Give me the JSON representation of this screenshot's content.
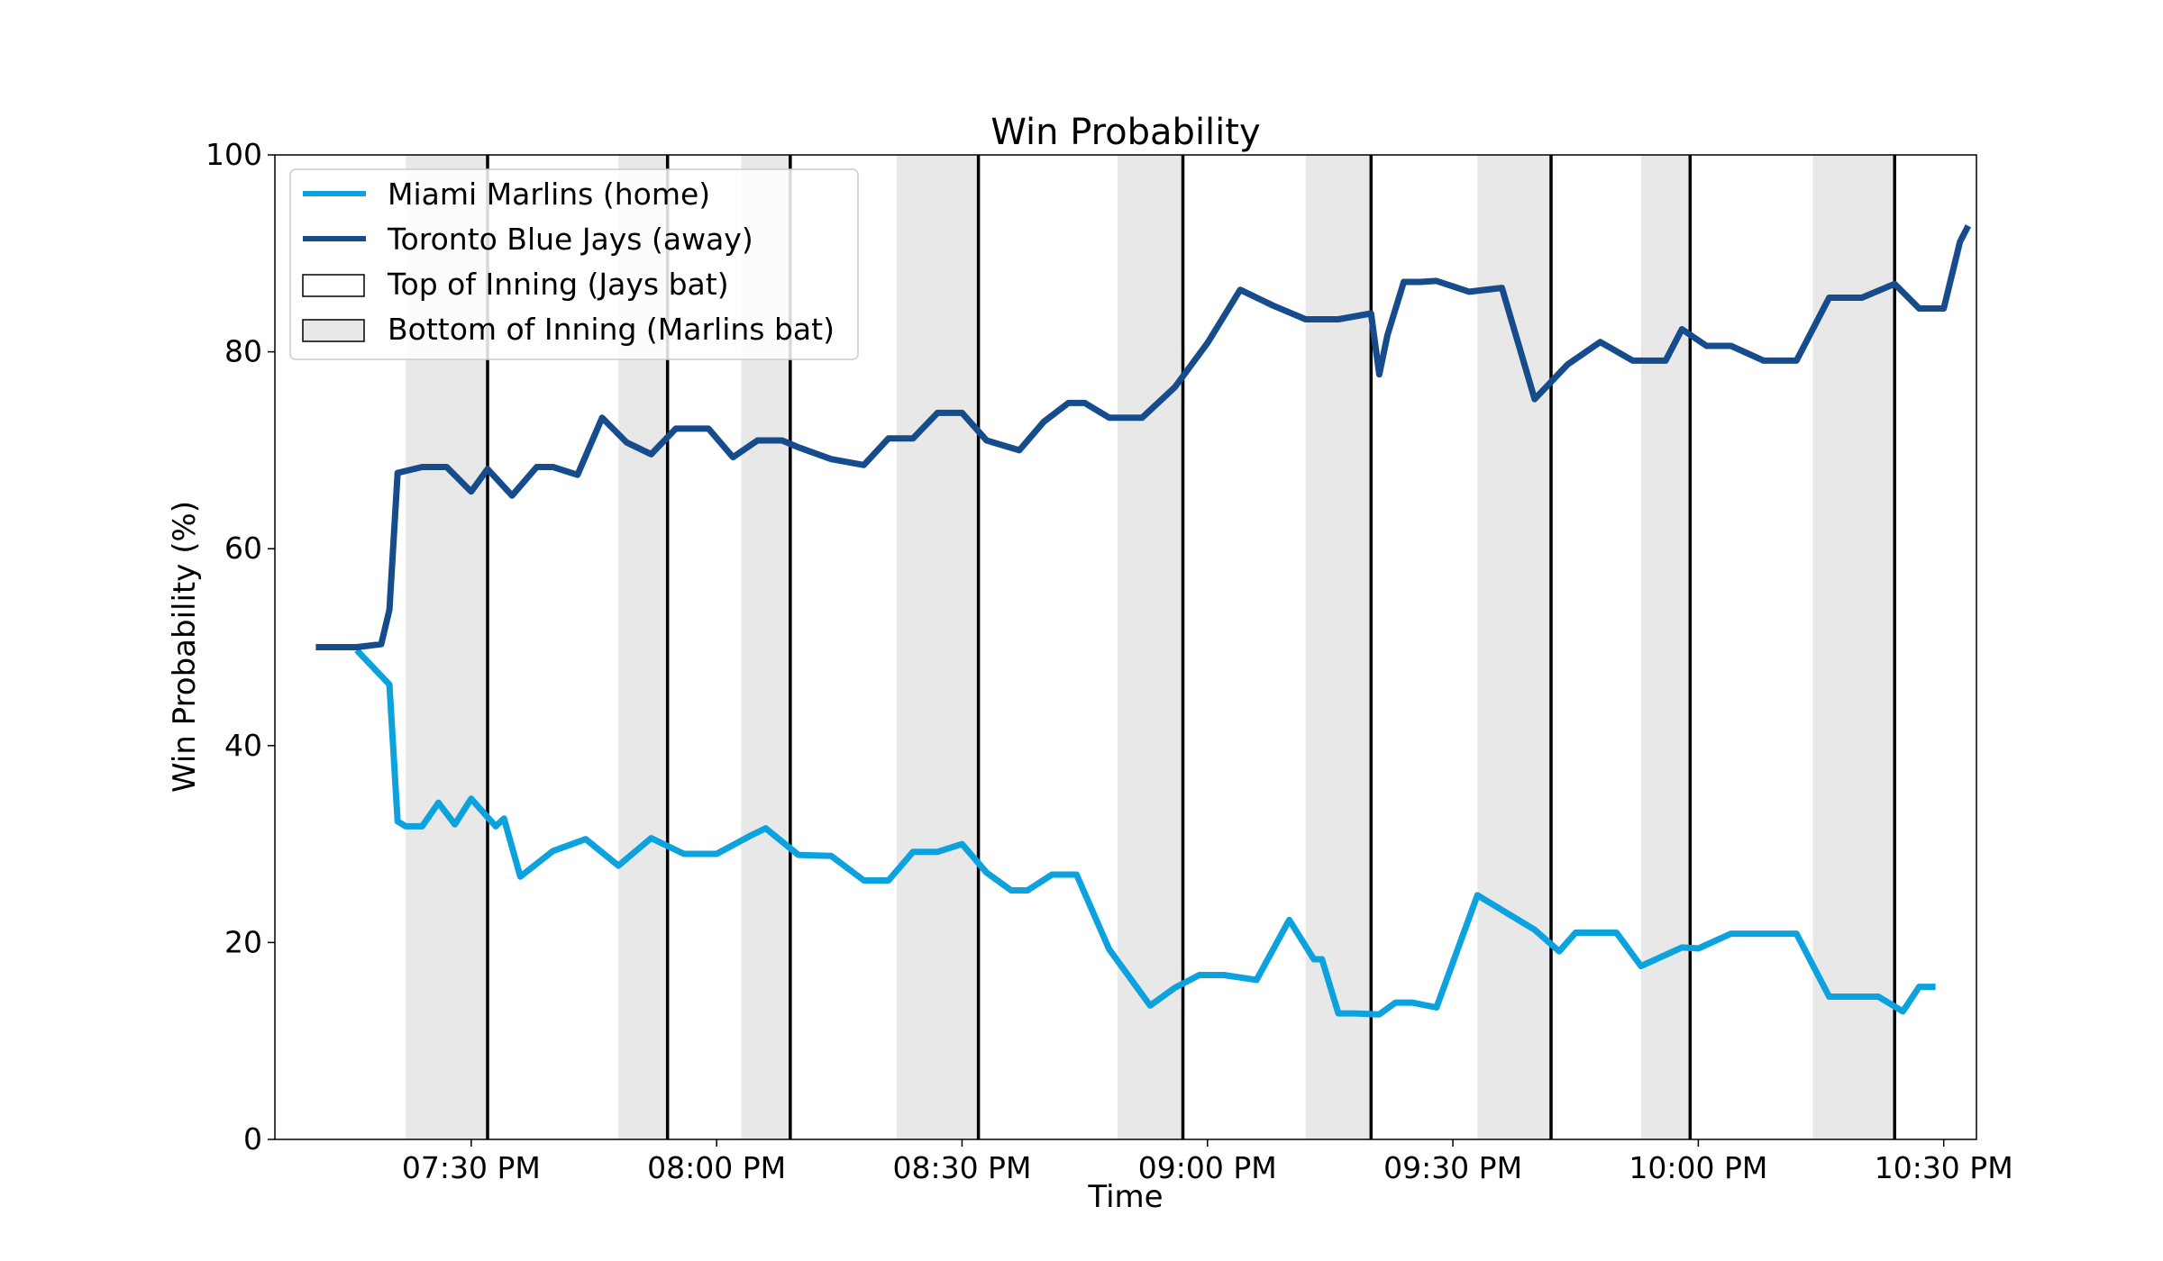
{
  "chart_data": {
    "type": "line",
    "title": "Win Probability",
    "xlabel": "Time",
    "ylabel": "Win Probability (%)",
    "ylim": [
      0,
      100
    ],
    "yticks": [
      0,
      20,
      40,
      60,
      80,
      100
    ],
    "xlim": [
      "07:06 PM",
      "10:34 PM"
    ],
    "xticks": [
      "07:30 PM",
      "08:00 PM",
      "08:30 PM",
      "09:00 PM",
      "09:30 PM",
      "10:00 PM",
      "10:30 PM"
    ],
    "grid": false,
    "legend_position": "top-left",
    "legend": [
      {
        "label": "Miami Marlins (home)",
        "kind": "line",
        "color": "#0ba2de"
      },
      {
        "label": "Toronto Blue Jays (away)",
        "kind": "line",
        "color": "#174c8c"
      },
      {
        "label": "Top of Inning (Jays bat)",
        "kind": "box",
        "color": "#ffffff"
      },
      {
        "label": "Bottom of Inning (Marlins bat)",
        "kind": "box",
        "color": "#e8e8e8"
      }
    ],
    "bottom_inning_spans": [
      [
        "07:22 PM",
        "07:32 PM"
      ],
      [
        "07:48 PM",
        "07:54 PM"
      ],
      [
        "08:03 PM",
        "08:09 PM"
      ],
      [
        "08:22 PM",
        "08:32 PM"
      ],
      [
        "08:49 PM",
        "08:57 PM"
      ],
      [
        "09:12 PM",
        "09:20 PM"
      ],
      [
        "09:33 PM",
        "09:42 PM"
      ],
      [
        "09:53 PM",
        "09:59 PM"
      ],
      [
        "10:14 PM",
        "10:24 PM"
      ]
    ],
    "inning_end_lines": [
      "07:32 PM",
      "07:54 PM",
      "08:09 PM",
      "08:32 PM",
      "08:57 PM",
      "09:20 PM",
      "09:42 PM",
      "09:59 PM",
      "10:24 PM"
    ],
    "series": [
      {
        "name": "Miami Marlins (home)",
        "color": "#0ba2de",
        "x": [
          "07:16 PM",
          "07:20 PM",
          "07:21 PM",
          "07:22 PM",
          "07:24 PM",
          "07:26 PM",
          "07:28 PM",
          "07:30 PM",
          "07:33 PM",
          "07:34 PM",
          "07:36 PM",
          "07:40 PM",
          "07:44 PM",
          "07:48 PM",
          "07:52 PM",
          "07:56 PM",
          "08:00 PM",
          "08:04 PM",
          "08:06 PM",
          "08:10 PM",
          "08:14 PM",
          "08:18 PM",
          "08:21 PM",
          "08:24 PM",
          "08:27 PM",
          "08:30 PM",
          "08:33 PM",
          "08:36 PM",
          "08:38 PM",
          "08:41 PM",
          "08:44 PM",
          "08:48 PM",
          "08:53 PM",
          "08:56 PM",
          "08:59 PM",
          "09:02 PM",
          "09:06 PM",
          "09:10 PM",
          "09:13 PM",
          "09:14 PM",
          "09:16 PM",
          "09:18 PM",
          "09:21 PM",
          "09:23 PM",
          "09:25 PM",
          "09:28 PM",
          "09:33 PM",
          "09:40 PM",
          "09:43 PM",
          "09:45 PM",
          "09:48 PM",
          "09:50 PM",
          "09:53 PM",
          "09:58 PM",
          "10:00 PM",
          "10:04 PM",
          "10:08 PM",
          "10:12 PM",
          "10:16 PM",
          "10:22 PM",
          "10:25 PM",
          "10:27 PM",
          "10:29 PM"
        ],
        "values": [
          49.7,
          46.2,
          32.3,
          31.8,
          31.8,
          34.2,
          32.0,
          34.6,
          31.8,
          32.6,
          26.7,
          29.3,
          30.5,
          27.8,
          30.6,
          29.0,
          29.0,
          30.8,
          31.6,
          28.9,
          28.8,
          26.3,
          26.3,
          29.2,
          29.2,
          30.0,
          27.1,
          25.3,
          25.3,
          26.9,
          26.9,
          19.3,
          13.6,
          15.4,
          16.7,
          16.7,
          16.2,
          22.3,
          18.3,
          18.3,
          12.8,
          12.8,
          12.7,
          13.9,
          13.9,
          13.4,
          24.8,
          21.3,
          19.1,
          21.0,
          21.0,
          21.0,
          17.6,
          19.5,
          19.4,
          20.9,
          20.9,
          20.9,
          14.5,
          14.5,
          13.0,
          15.5,
          15.5
        ]
      },
      {
        "name": "Toronto Blue Jays (away)",
        "color": "#174c8c",
        "x": [
          "07:11 PM",
          "07:16 PM",
          "07:19 PM",
          "07:20 PM",
          "07:21 PM",
          "07:24 PM",
          "07:27 PM",
          "07:30 PM",
          "07:32 PM",
          "07:35 PM",
          "07:38 PM",
          "07:40 PM",
          "07:43 PM",
          "07:46 PM",
          "07:49 PM",
          "07:52 PM",
          "07:55 PM",
          "07:59 PM",
          "08:02 PM",
          "08:05 PM",
          "08:08 PM",
          "08:10 PM",
          "08:14 PM",
          "08:18 PM",
          "08:21 PM",
          "08:24 PM",
          "08:27 PM",
          "08:30 PM",
          "08:33 PM",
          "08:37 PM",
          "08:40 PM",
          "08:43 PM",
          "08:45 PM",
          "08:48 PM",
          "08:52 PM",
          "08:56 PM",
          "09:00 PM",
          "09:04 PM",
          "09:08 PM",
          "09:12 PM",
          "09:16 PM",
          "09:20 PM",
          "09:21 PM",
          "09:22 PM",
          "09:24 PM",
          "09:26 PM",
          "09:28 PM",
          "09:32 PM",
          "09:36 PM",
          "09:40 PM",
          "09:44 PM",
          "09:48 PM",
          "09:52 PM",
          "09:56 PM",
          "09:58 PM",
          "10:01 PM",
          "10:04 PM",
          "10:08 PM",
          "10:12 PM",
          "10:16 PM",
          "10:20 PM",
          "10:24 PM",
          "10:27 PM",
          "10:30 PM",
          "10:32 PM",
          "10:33 PM"
        ],
        "values": [
          50.0,
          50.0,
          50.3,
          53.8,
          67.7,
          68.3,
          68.3,
          65.8,
          68.1,
          65.4,
          68.3,
          68.3,
          67.5,
          73.3,
          70.8,
          69.6,
          72.2,
          72.2,
          69.3,
          71.0,
          71.0,
          70.3,
          69.1,
          68.5,
          71.2,
          71.2,
          73.8,
          73.8,
          71.0,
          70.0,
          72.9,
          74.8,
          74.8,
          73.3,
          73.3,
          76.4,
          80.9,
          86.3,
          84.7,
          83.3,
          83.3,
          83.9,
          77.7,
          81.7,
          87.1,
          87.1,
          87.2,
          86.1,
          86.5,
          75.2,
          78.7,
          81.0,
          79.1,
          79.1,
          82.3,
          80.6,
          80.6,
          79.1,
          79.1,
          85.5,
          85.5,
          86.9,
          84.4,
          84.4,
          91.2,
          92.8
        ]
      }
    ]
  }
}
